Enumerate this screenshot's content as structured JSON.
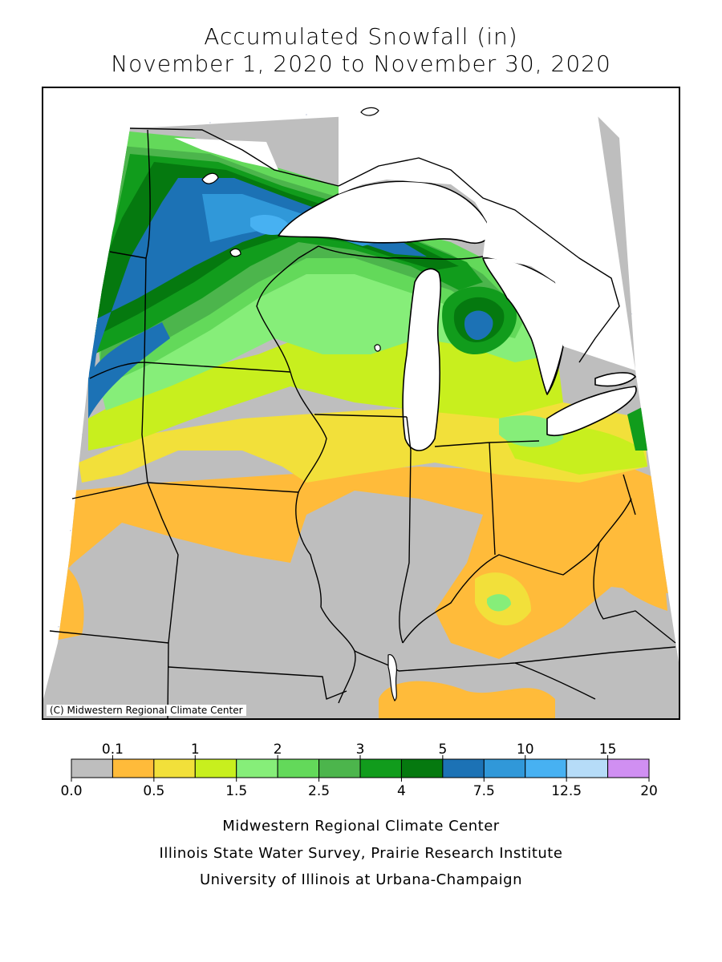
{
  "title": {
    "line1": "Accumulated Snowfall (in)",
    "line2": "November 1, 2020 to November 30, 2020"
  },
  "map": {
    "credit": "(C) Midwestern Regional Climate Center",
    "water_color": "#ffffff",
    "land_default_color": "#bebebe"
  },
  "legend": {
    "top_labels": [
      "0.1",
      "1",
      "2",
      "3",
      "5",
      "10",
      "15"
    ],
    "bottom_labels": [
      "0.0",
      "0.5",
      "1.5",
      "2.5",
      "4",
      "7.5",
      "12.5",
      "20"
    ],
    "colors": [
      "#bebebe",
      "#ffbb3a",
      "#f2e03a",
      "#c8ef1e",
      "#86ee79",
      "#63d95a",
      "#4cb54c",
      "#119c1c",
      "#05790f",
      "#1c72b5",
      "#3098d9",
      "#47b1f2",
      "#b6dcf8",
      "#d08ff2"
    ]
  },
  "footer": {
    "line1": "Midwestern Regional Climate Center",
    "line2": "Illinois State Water Survey, Prairie Research Institute",
    "line3": "University of Illinois at Urbana-Champaign"
  }
}
